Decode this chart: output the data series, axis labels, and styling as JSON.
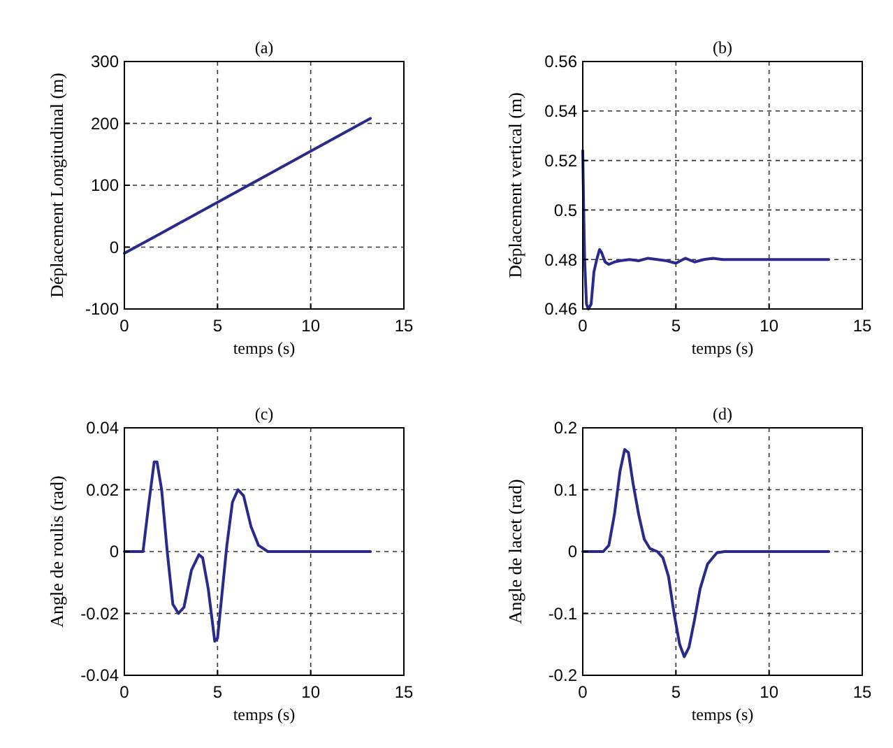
{
  "chart_data": [
    {
      "type": "line",
      "title": "(a)",
      "xlabel": "temps (s)",
      "ylabel": "Déplacement Longitudinal (m)",
      "xlim": [
        0,
        15
      ],
      "xticks": [
        0,
        5,
        10,
        15
      ],
      "ylim": [
        -100,
        300
      ],
      "yticks": [
        -100,
        0,
        100,
        200,
        300
      ],
      "grid": true,
      "line_style": "solid",
      "series": [
        {
          "color": "#2a2a8c",
          "x": [
            0,
            2,
            4,
            6,
            8,
            10,
            12,
            13.2
          ],
          "values": [
            -10,
            23,
            56,
            89,
            122,
            155,
            188,
            208
          ]
        }
      ]
    },
    {
      "type": "line",
      "title": "(b)",
      "xlabel": "temps (s)",
      "ylabel": "Déplacement vertical (m)",
      "xlim": [
        0,
        15
      ],
      "xticks": [
        0,
        5,
        10,
        15
      ],
      "ylim": [
        0.46,
        0.56
      ],
      "yticks": [
        0.46,
        0.54,
        0.52,
        {
          "value": 0.5,
          "label": "0.5"
        },
        0.48,
        0.56
      ],
      "grid": true,
      "line_style": "solid",
      "series": [
        {
          "color": "#2a2a8c",
          "x": [
            0,
            0.05,
            0.1,
            0.2,
            0.3,
            0.45,
            0.6,
            0.75,
            0.9,
            1.0,
            1.2,
            1.4,
            1.7,
            2,
            2.5,
            3,
            3.5,
            4,
            4.5,
            5,
            5.5,
            6,
            6.5,
            7,
            7.5,
            13.2
          ],
          "values": [
            0.524,
            0.5,
            0.48,
            0.462,
            0.46,
            0.462,
            0.475,
            0.48,
            0.484,
            0.483,
            0.479,
            0.478,
            0.479,
            0.4795,
            0.48,
            0.4795,
            0.4805,
            0.48,
            0.4795,
            0.4785,
            0.4805,
            0.479,
            0.48,
            0.4805,
            0.48,
            0.48
          ]
        }
      ]
    },
    {
      "type": "line",
      "title": "(c)",
      "xlabel": "temps (s)",
      "ylabel": "Angle de roulis (rad)",
      "xlim": [
        0,
        15
      ],
      "xticks": [
        0,
        5,
        10,
        15
      ],
      "ylim": [
        -0.04,
        0.04
      ],
      "yticks": [
        -0.04,
        -0.02,
        0,
        0.02,
        0.04
      ],
      "grid": true,
      "line_style": "solid",
      "series": [
        {
          "color": "#2a2a8c",
          "x": [
            0,
            1,
            1.3,
            1.6,
            1.75,
            2,
            2.3,
            2.6,
            2.9,
            3.2,
            3.6,
            4,
            4.2,
            4.5,
            4.85,
            5,
            5.3,
            5.5,
            5.8,
            6.1,
            6.4,
            6.8,
            7.2,
            7.7,
            13.2
          ],
          "values": [
            0,
            0,
            0.015,
            0.029,
            0.029,
            0.02,
            0,
            -0.017,
            -0.02,
            -0.018,
            -0.006,
            -0.001,
            -0.002,
            -0.012,
            -0.029,
            -0.028,
            -0.01,
            0.002,
            0.016,
            0.02,
            0.018,
            0.008,
            0.002,
            0,
            0
          ]
        }
      ]
    },
    {
      "type": "line",
      "title": "(d)",
      "xlabel": "temps (s)",
      "ylabel": "Angle de lacet (rad)",
      "xlim": [
        0,
        15
      ],
      "xticks": [
        0,
        5,
        10,
        15
      ],
      "ylim": [
        -0.2,
        0.2
      ],
      "yticks": [
        -0.2,
        -0.1,
        0,
        0.1,
        0.2
      ],
      "grid": true,
      "line_style": "solid",
      "series": [
        {
          "color": "#2a2a8c",
          "x": [
            0,
            1.1,
            1.4,
            1.7,
            2,
            2.25,
            2.45,
            2.7,
            3,
            3.3,
            3.6,
            4,
            4.3,
            4.6,
            4.9,
            5.2,
            5.45,
            5.7,
            6,
            6.3,
            6.7,
            7.2,
            7.6,
            13.2
          ],
          "values": [
            0,
            0,
            0.01,
            0.06,
            0.13,
            0.165,
            0.16,
            0.11,
            0.06,
            0.02,
            0.005,
            0,
            -0.01,
            -0.04,
            -0.1,
            -0.15,
            -0.17,
            -0.155,
            -0.11,
            -0.06,
            -0.02,
            -0.002,
            0,
            0
          ]
        }
      ]
    }
  ]
}
